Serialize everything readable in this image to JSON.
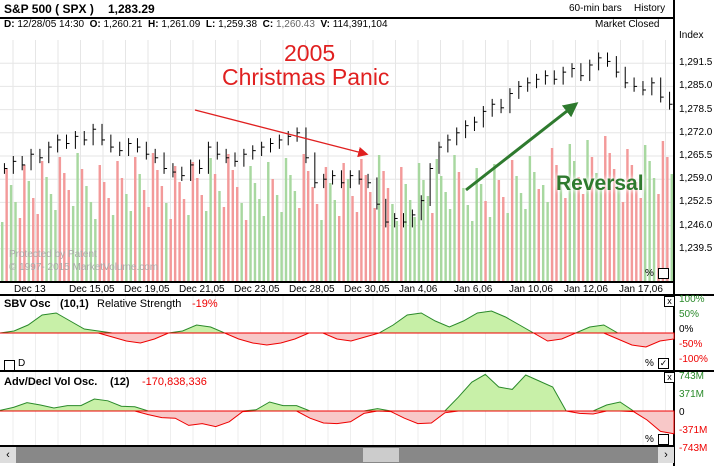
{
  "header": {
    "symbol": "S&P 500  ( SPX )",
    "last": "1,283.29",
    "bars": "60-min bars",
    "history": "History",
    "status": "Market Closed",
    "d_label": "D:",
    "d": "12/28/05 14:30",
    "o_label": "O:",
    "o": "1,260.21",
    "h_label": "H:",
    "h": "1,261.09",
    "l_label": "L:",
    "l": "1,259.38",
    "c_label": "C:",
    "c": "1,260.43",
    "v_label": "V:",
    "v": "114,391,104"
  },
  "axis_title": "Index",
  "watermark": [
    "Protected by Patent",
    "© 1997- 2015 MarketVolume.com"
  ],
  "annotations": {
    "title1": "2005",
    "title2": "Christmas Panic",
    "reversal": "Reversal"
  },
  "colors": {
    "up": "#a8d8a0",
    "down": "#f39a9a",
    "green_fill": "#c8f0a8",
    "red_fill": "#f8c8c8",
    "annot_red": "#e02020",
    "annot_green": "#2e7a2e"
  },
  "sbv": {
    "title": "SBV Osc",
    "params": "(10,1)",
    "label": "Relative Strength",
    "value": "-19%",
    "ticks": [
      "100%",
      "50%",
      "0%",
      "-50%",
      "-100%"
    ],
    "d_label": "D",
    "pct": "%"
  },
  "adv": {
    "title": "Adv/Decl Vol Osc.",
    "params": "(12)",
    "value": "-170,838,336",
    "ticks": [
      "743M",
      "371M",
      "0",
      "-371M",
      "-743M"
    ],
    "pct": "%"
  },
  "main_pct": "%",
  "chart_data": {
    "type": "line",
    "title": "S&P 500 (SPX) 60-min bars",
    "ylabel": "Index",
    "ylim": [
      1233.0,
      1298.0
    ],
    "yticks": [
      "1,291.5",
      "1,285.0",
      "1,278.5",
      "1,272.0",
      "1,265.5",
      "1,259.0",
      "1,252.5",
      "1,246.0",
      "1,239.5"
    ],
    "ytick_values": [
      1291.5,
      1285,
      1278.5,
      1272,
      1265.5,
      1259,
      1252.5,
      1246,
      1239.5
    ],
    "xticks": [
      "Dec 13",
      "Dec 15,05",
      "Dec 19,05",
      "Dec 21,05",
      "Dec 23,05",
      "Dec 28,05",
      "Dec 30,05",
      "Jan 4,06",
      "Jan 6,06",
      "Jan 10,06",
      "Jan 12,06",
      "Jan 17,06"
    ],
    "close": [
      1262,
      1264,
      1263,
      1266,
      1265,
      1268,
      1270,
      1269,
      1271,
      1270,
      1273,
      1270,
      1268,
      1267,
      1269,
      1268,
      1266,
      1265,
      1262,
      1261,
      1260,
      1263,
      1262,
      1268,
      1266,
      1265,
      1264,
      1266,
      1267,
      1268,
      1269,
      1270,
      1271,
      1272,
      1265,
      1258,
      1259,
      1260,
      1258,
      1260,
      1259,
      1258,
      1252,
      1247,
      1248,
      1247,
      1249,
      1253,
      1262,
      1268,
      1270,
      1272,
      1274,
      1275,
      1278,
      1280,
      1279,
      1283,
      1285,
      1286,
      1287,
      1288,
      1287,
      1289,
      1290,
      1288,
      1291,
      1293,
      1292,
      1289,
      1286,
      1285,
      1284,
      1286,
      1282,
      1280
    ],
    "sbv_values": [
      0,
      5,
      20,
      45,
      50,
      30,
      10,
      5,
      -10,
      -20,
      -25,
      -15,
      0,
      5,
      20,
      15,
      0,
      -15,
      -25,
      -30,
      -25,
      -15,
      0,
      0,
      -15,
      -20,
      -10,
      0,
      20,
      45,
      50,
      30,
      15,
      30,
      50,
      55,
      40,
      20,
      0,
      -20,
      -15,
      0,
      15,
      20,
      -15,
      -30,
      -35,
      -20,
      -15
    ],
    "adv_values": [
      10,
      60,
      140,
      100,
      50,
      90,
      90,
      200,
      170,
      80,
      70,
      -60,
      -110,
      -120,
      -240,
      -210,
      -260,
      -180,
      -10,
      20,
      150,
      90,
      90,
      -120,
      -200,
      -210,
      -180,
      -40,
      40,
      -10,
      -120,
      -210,
      -200,
      -30,
      230,
      480,
      610,
      400,
      360,
      600,
      500,
      400,
      0,
      -40,
      -50,
      100,
      150,
      -10,
      -150,
      -340,
      -380
    ]
  }
}
